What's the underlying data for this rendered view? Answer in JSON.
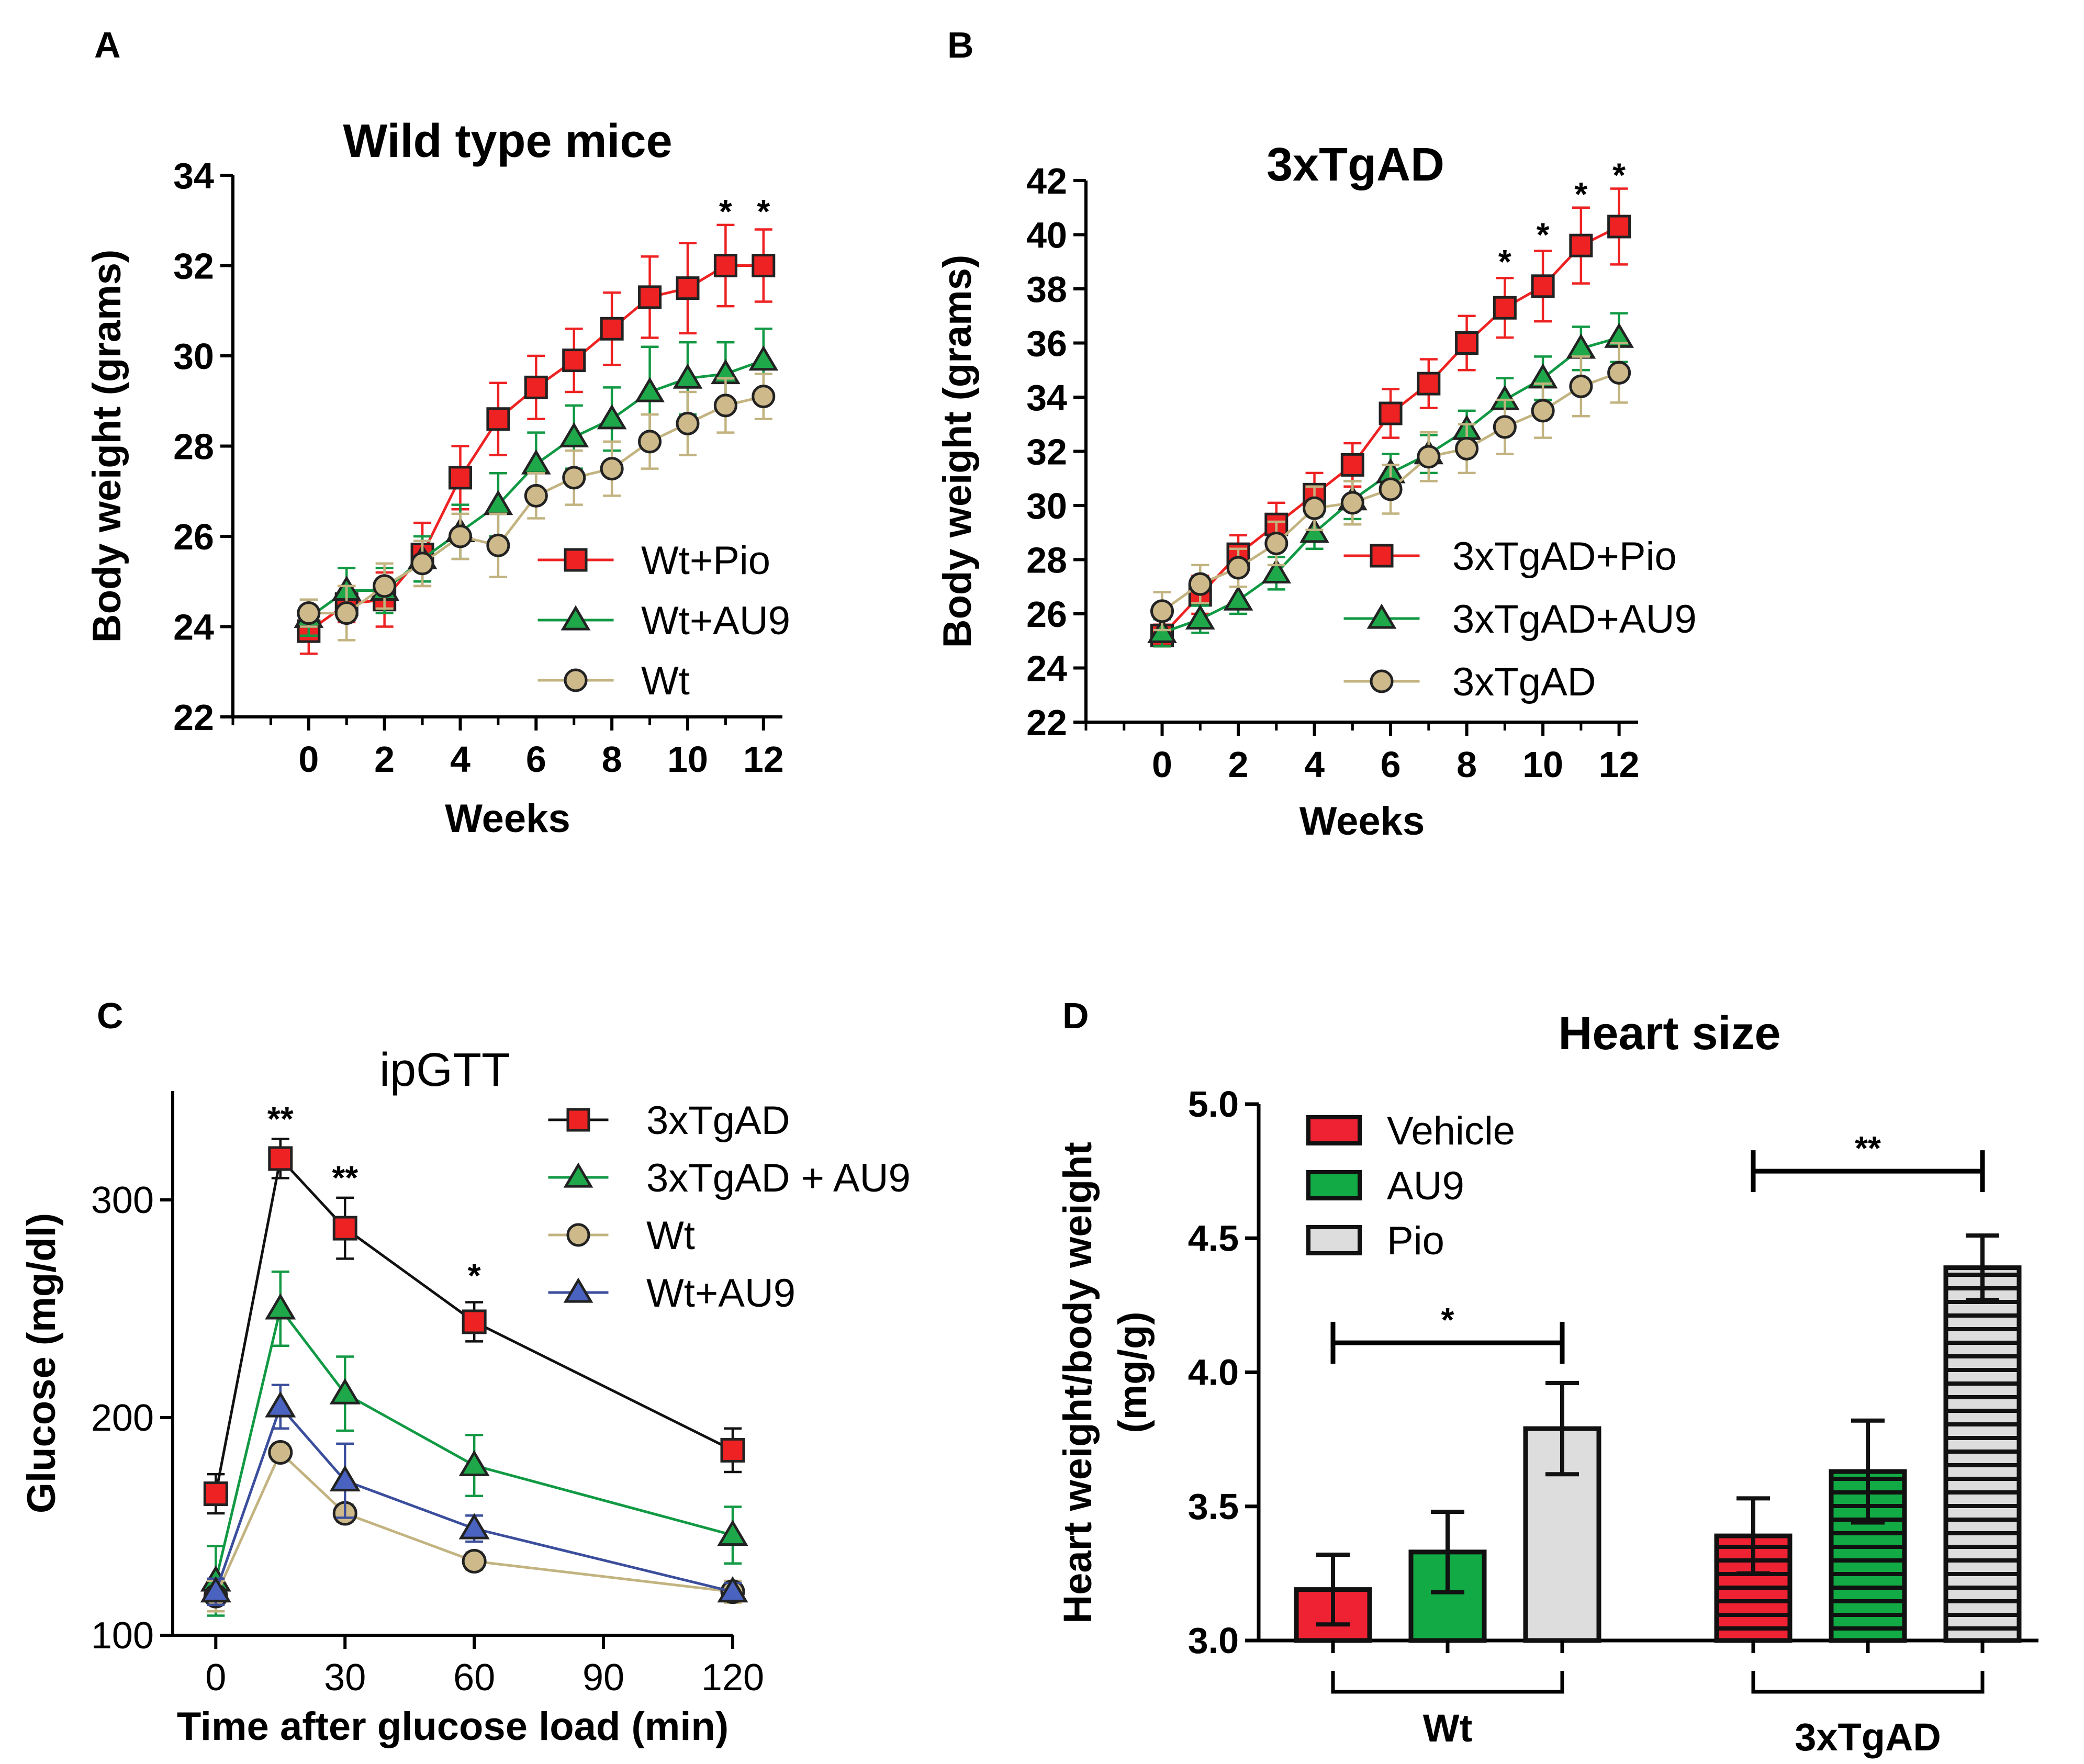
{
  "chart_data": [
    {
      "id": "A",
      "panel_label": "A",
      "type": "line",
      "title": "Wild type mice",
      "xlabel": "Weeks",
      "ylabel": "Body weight (grams)",
      "xlim": [
        -2,
        12.5
      ],
      "ylim": [
        22,
        34
      ],
      "xticks": [
        0,
        2,
        4,
        6,
        8,
        10,
        12
      ],
      "yticks": [
        22,
        24,
        26,
        28,
        30,
        32,
        34
      ],
      "x": [
        0,
        1,
        2,
        3,
        4,
        5,
        6,
        7,
        8,
        9,
        10,
        11,
        12
      ],
      "legend_position": "bottom-right",
      "series": [
        {
          "name": "Wt+Pio",
          "marker": "square",
          "color": "#ee2222",
          "fill": "#ee2222",
          "values": [
            23.9,
            24.5,
            24.6,
            25.6,
            27.3,
            28.6,
            29.3,
            29.9,
            30.6,
            31.3,
            31.5,
            32.0,
            32.0
          ],
          "errors": [
            0.5,
            0.4,
            0.6,
            0.7,
            0.7,
            0.8,
            0.7,
            0.7,
            0.8,
            0.9,
            1.0,
            0.9,
            0.8
          ]
        },
        {
          "name": "Wt+AU9",
          "marker": "triangle",
          "color": "#119944",
          "fill": "#1ea84a",
          "values": [
            24.2,
            24.8,
            24.8,
            25.5,
            26.1,
            26.7,
            27.6,
            28.2,
            28.6,
            29.2,
            29.5,
            29.6,
            29.9
          ],
          "errors": [
            0.4,
            0.5,
            0.5,
            0.5,
            0.6,
            0.7,
            0.7,
            0.7,
            0.7,
            1.0,
            0.8,
            0.7,
            0.7
          ]
        },
        {
          "name": "Wt",
          "marker": "circle",
          "color": "#c2b380",
          "fill": "#cdb98a",
          "values": [
            24.3,
            24.3,
            24.9,
            25.4,
            26.0,
            25.8,
            26.9,
            27.3,
            27.5,
            28.1,
            28.5,
            28.9,
            29.1
          ],
          "errors": [
            0.3,
            0.6,
            0.5,
            0.5,
            0.5,
            0.7,
            0.5,
            0.6,
            0.6,
            0.6,
            0.7,
            0.6,
            0.5
          ]
        }
      ],
      "annotations": [
        {
          "x": 11,
          "text": "*",
          "above": 32.9
        },
        {
          "x": 12,
          "text": "*",
          "above": 32.9
        }
      ]
    },
    {
      "id": "B",
      "panel_label": "B",
      "type": "line",
      "title": "3xTgAD",
      "xlabel": "Weeks",
      "ylabel": "Body weight (grams)",
      "xlim": [
        -2,
        12.5
      ],
      "ylim": [
        22,
        42
      ],
      "xticks": [
        0,
        2,
        4,
        6,
        8,
        10,
        12
      ],
      "yticks": [
        22,
        24,
        26,
        28,
        30,
        32,
        34,
        36,
        38,
        40,
        42
      ],
      "x": [
        0,
        1,
        2,
        3,
        4,
        5,
        6,
        7,
        8,
        9,
        10,
        11,
        12
      ],
      "legend_position": "bottom-right",
      "series": [
        {
          "name": "3xTgAD+Pio",
          "marker": "square",
          "color": "#ee2222",
          "fill": "#ee2222",
          "values": [
            25.2,
            26.7,
            28.2,
            29.3,
            30.4,
            31.5,
            33.4,
            34.5,
            36.0,
            37.3,
            38.1,
            39.6,
            40.3
          ],
          "errors": [
            0.4,
            0.7,
            0.7,
            0.8,
            0.8,
            0.8,
            0.9,
            0.9,
            1.0,
            1.1,
            1.3,
            1.4,
            1.4
          ]
        },
        {
          "name": "3xTgAD+AU9",
          "marker": "triangle",
          "color": "#119944",
          "fill": "#1ea84a",
          "values": [
            25.3,
            25.8,
            26.5,
            27.5,
            29.0,
            30.2,
            31.2,
            31.9,
            32.8,
            33.9,
            34.7,
            35.8,
            36.2
          ],
          "errors": [
            0.5,
            0.5,
            0.5,
            0.6,
            0.6,
            0.7,
            0.7,
            0.7,
            0.7,
            0.8,
            0.8,
            0.8,
            0.9
          ]
        },
        {
          "name": "3xTgAD",
          "marker": "circle",
          "color": "#c2b380",
          "fill": "#cdb98a",
          "values": [
            26.1,
            27.1,
            27.7,
            28.6,
            29.9,
            30.1,
            30.6,
            31.8,
            32.1,
            32.9,
            33.5,
            34.4,
            34.9
          ],
          "errors": [
            0.7,
            0.7,
            0.7,
            0.8,
            0.8,
            0.8,
            0.9,
            0.9,
            0.9,
            1.0,
            1.0,
            1.1,
            1.1
          ]
        }
      ],
      "annotations": [
        {
          "x": 9,
          "text": "*",
          "above": 38.5
        },
        {
          "x": 10,
          "text": "*",
          "above": 39.5
        },
        {
          "x": 11,
          "text": "*",
          "above": 41.0
        },
        {
          "x": 12,
          "text": "*",
          "above": 41.7
        }
      ]
    },
    {
      "id": "C",
      "panel_label": "C",
      "type": "line",
      "title": "ipGTT",
      "xlabel": "Time after glucose load (min)",
      "ylabel": "Glucose (mg/dl)",
      "xlim": [
        -10,
        120
      ],
      "ylim": [
        100,
        350
      ],
      "xticks": [
        0,
        30,
        60,
        90,
        120
      ],
      "yticks": [
        100,
        200,
        300
      ],
      "x": [
        0,
        15,
        30,
        60,
        120
      ],
      "legend_position": "top-right",
      "series": [
        {
          "name": "3xTgAD",
          "marker": "square",
          "color": "#111111",
          "fill": "#ee2222",
          "errcolor": "#111111",
          "values": [
            165,
            319,
            287,
            244,
            185
          ],
          "errors": [
            9,
            9,
            14,
            9,
            10
          ]
        },
        {
          "name": "3xTgAD + AU9",
          "marker": "triangle",
          "color": "#119944",
          "fill": "#1ea84a",
          "errcolor": "#119944",
          "values": [
            125,
            250,
            211,
            178,
            146
          ],
          "errors": [
            16,
            17,
            17,
            14,
            13
          ]
        },
        {
          "name": "Wt",
          "marker": "circle",
          "color": "#c2b380",
          "fill": "#cdb98a",
          "errcolor": "#c2b380",
          "values": [
            118,
            184,
            156,
            134,
            120
          ],
          "errors": [
            7,
            4,
            4,
            4,
            5
          ]
        },
        {
          "name": "Wt+AU9",
          "marker": "triangle",
          "color": "#3b4e9c",
          "fill": "#4a62c0",
          "errcolor": "#3b4e9c",
          "values": [
            120,
            205,
            171,
            149,
            120
          ],
          "errors": [
            6,
            10,
            17,
            6,
            4
          ]
        }
      ],
      "annotations": [
        {
          "x": 15,
          "text": "**",
          "above": 331
        },
        {
          "x": 30,
          "text": "**",
          "above": 304
        },
        {
          "x": 60,
          "text": "*",
          "above": 259
        }
      ]
    },
    {
      "id": "D",
      "panel_label": "D",
      "type": "bar",
      "title": "Heart size",
      "ylabel": "Heart weight/body weight",
      "ylabel2": "(mg/g)",
      "ylim": [
        3.0,
        5.0
      ],
      "yticks": [
        "3.0",
        "3.5",
        "4.0",
        "4.5",
        "5.0"
      ],
      "groups": [
        "Wt",
        "3xTgAD"
      ],
      "categories": [
        "Vehicle",
        "AU9",
        "Pio"
      ],
      "colors": {
        "Vehicle": "#ee2233",
        "AU9": "#11aa44",
        "Pio": "#dddddd"
      },
      "legend_position": "top-left",
      "series": [
        {
          "name": "Wt",
          "values": [
            3.19,
            3.33,
            3.79
          ],
          "errors": [
            0.13,
            0.15,
            0.17
          ],
          "pattern": "solid"
        },
        {
          "name": "3xTgAD",
          "values": [
            3.39,
            3.63,
            4.39
          ],
          "errors": [
            0.14,
            0.19,
            0.12
          ],
          "pattern": "striped"
        }
      ],
      "significance": [
        {
          "group": "Wt",
          "from": "Vehicle",
          "to": "Pio",
          "y": 4.11,
          "text": "*"
        },
        {
          "group": "3xTgAD",
          "from": "Vehicle",
          "to": "Pio",
          "y": 4.75,
          "text": "**"
        }
      ]
    }
  ]
}
